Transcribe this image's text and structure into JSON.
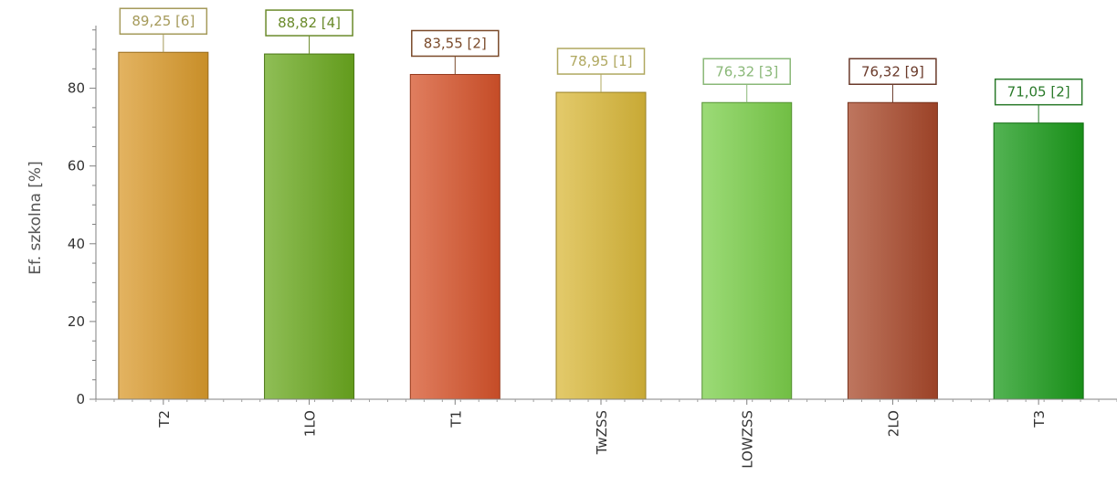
{
  "chart_data": {
    "type": "bar",
    "title": "",
    "xlabel": "",
    "ylabel": "Ef. szkolna [%]",
    "ylim": [
      0,
      98
    ],
    "yticks": [
      0,
      20,
      40,
      60,
      80
    ],
    "grid": false,
    "categories": [
      "T2",
      "1LO",
      "T1",
      "TwZSS",
      "LOWZSS",
      "2LO",
      "T3"
    ],
    "values": [
      89.25,
      88.82,
      83.55,
      78.95,
      76.32,
      76.32,
      71.05
    ],
    "data_labels": [
      "89,25 [6]",
      "88,82 [4]",
      "83,55 [2]",
      "78,95 [1]",
      "76,32 [3]",
      "76,32 [9]",
      "71,05 [2]"
    ],
    "colors": [
      "#d99a2c",
      "#6aa81e",
      "#d6532a",
      "#d9b83a",
      "#7bcf4a",
      "#a8482a",
      "#1a9a1a"
    ],
    "label_border_colors": [
      "#a59a5a",
      "#6a8a2a",
      "#7a4a2a",
      "#b0a860",
      "#8ab878",
      "#6a3a2a",
      "#2a7a2a"
    ]
  }
}
